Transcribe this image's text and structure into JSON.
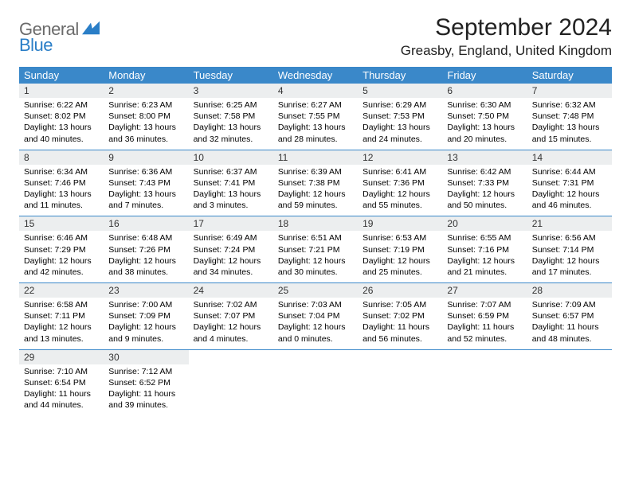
{
  "brand": {
    "general": "General",
    "blue": "Blue"
  },
  "title": "September 2024",
  "location": "Greasby, England, United Kingdom",
  "colors": {
    "header_bg": "#3a88c9",
    "daynum_bg": "#eceeef",
    "border": "#3a88c9"
  },
  "weekdays": [
    "Sunday",
    "Monday",
    "Tuesday",
    "Wednesday",
    "Thursday",
    "Friday",
    "Saturday"
  ],
  "weeks": [
    [
      {
        "n": "1",
        "sr": "Sunrise: 6:22 AM",
        "ss": "Sunset: 8:02 PM",
        "dl1": "Daylight: 13 hours",
        "dl2": "and 40 minutes."
      },
      {
        "n": "2",
        "sr": "Sunrise: 6:23 AM",
        "ss": "Sunset: 8:00 PM",
        "dl1": "Daylight: 13 hours",
        "dl2": "and 36 minutes."
      },
      {
        "n": "3",
        "sr": "Sunrise: 6:25 AM",
        "ss": "Sunset: 7:58 PM",
        "dl1": "Daylight: 13 hours",
        "dl2": "and 32 minutes."
      },
      {
        "n": "4",
        "sr": "Sunrise: 6:27 AM",
        "ss": "Sunset: 7:55 PM",
        "dl1": "Daylight: 13 hours",
        "dl2": "and 28 minutes."
      },
      {
        "n": "5",
        "sr": "Sunrise: 6:29 AM",
        "ss": "Sunset: 7:53 PM",
        "dl1": "Daylight: 13 hours",
        "dl2": "and 24 minutes."
      },
      {
        "n": "6",
        "sr": "Sunrise: 6:30 AM",
        "ss": "Sunset: 7:50 PM",
        "dl1": "Daylight: 13 hours",
        "dl2": "and 20 minutes."
      },
      {
        "n": "7",
        "sr": "Sunrise: 6:32 AM",
        "ss": "Sunset: 7:48 PM",
        "dl1": "Daylight: 13 hours",
        "dl2": "and 15 minutes."
      }
    ],
    [
      {
        "n": "8",
        "sr": "Sunrise: 6:34 AM",
        "ss": "Sunset: 7:46 PM",
        "dl1": "Daylight: 13 hours",
        "dl2": "and 11 minutes."
      },
      {
        "n": "9",
        "sr": "Sunrise: 6:36 AM",
        "ss": "Sunset: 7:43 PM",
        "dl1": "Daylight: 13 hours",
        "dl2": "and 7 minutes."
      },
      {
        "n": "10",
        "sr": "Sunrise: 6:37 AM",
        "ss": "Sunset: 7:41 PM",
        "dl1": "Daylight: 13 hours",
        "dl2": "and 3 minutes."
      },
      {
        "n": "11",
        "sr": "Sunrise: 6:39 AM",
        "ss": "Sunset: 7:38 PM",
        "dl1": "Daylight: 12 hours",
        "dl2": "and 59 minutes."
      },
      {
        "n": "12",
        "sr": "Sunrise: 6:41 AM",
        "ss": "Sunset: 7:36 PM",
        "dl1": "Daylight: 12 hours",
        "dl2": "and 55 minutes."
      },
      {
        "n": "13",
        "sr": "Sunrise: 6:42 AM",
        "ss": "Sunset: 7:33 PM",
        "dl1": "Daylight: 12 hours",
        "dl2": "and 50 minutes."
      },
      {
        "n": "14",
        "sr": "Sunrise: 6:44 AM",
        "ss": "Sunset: 7:31 PM",
        "dl1": "Daylight: 12 hours",
        "dl2": "and 46 minutes."
      }
    ],
    [
      {
        "n": "15",
        "sr": "Sunrise: 6:46 AM",
        "ss": "Sunset: 7:29 PM",
        "dl1": "Daylight: 12 hours",
        "dl2": "and 42 minutes."
      },
      {
        "n": "16",
        "sr": "Sunrise: 6:48 AM",
        "ss": "Sunset: 7:26 PM",
        "dl1": "Daylight: 12 hours",
        "dl2": "and 38 minutes."
      },
      {
        "n": "17",
        "sr": "Sunrise: 6:49 AM",
        "ss": "Sunset: 7:24 PM",
        "dl1": "Daylight: 12 hours",
        "dl2": "and 34 minutes."
      },
      {
        "n": "18",
        "sr": "Sunrise: 6:51 AM",
        "ss": "Sunset: 7:21 PM",
        "dl1": "Daylight: 12 hours",
        "dl2": "and 30 minutes."
      },
      {
        "n": "19",
        "sr": "Sunrise: 6:53 AM",
        "ss": "Sunset: 7:19 PM",
        "dl1": "Daylight: 12 hours",
        "dl2": "and 25 minutes."
      },
      {
        "n": "20",
        "sr": "Sunrise: 6:55 AM",
        "ss": "Sunset: 7:16 PM",
        "dl1": "Daylight: 12 hours",
        "dl2": "and 21 minutes."
      },
      {
        "n": "21",
        "sr": "Sunrise: 6:56 AM",
        "ss": "Sunset: 7:14 PM",
        "dl1": "Daylight: 12 hours",
        "dl2": "and 17 minutes."
      }
    ],
    [
      {
        "n": "22",
        "sr": "Sunrise: 6:58 AM",
        "ss": "Sunset: 7:11 PM",
        "dl1": "Daylight: 12 hours",
        "dl2": "and 13 minutes."
      },
      {
        "n": "23",
        "sr": "Sunrise: 7:00 AM",
        "ss": "Sunset: 7:09 PM",
        "dl1": "Daylight: 12 hours",
        "dl2": "and 9 minutes."
      },
      {
        "n": "24",
        "sr": "Sunrise: 7:02 AM",
        "ss": "Sunset: 7:07 PM",
        "dl1": "Daylight: 12 hours",
        "dl2": "and 4 minutes."
      },
      {
        "n": "25",
        "sr": "Sunrise: 7:03 AM",
        "ss": "Sunset: 7:04 PM",
        "dl1": "Daylight: 12 hours",
        "dl2": "and 0 minutes."
      },
      {
        "n": "26",
        "sr": "Sunrise: 7:05 AM",
        "ss": "Sunset: 7:02 PM",
        "dl1": "Daylight: 11 hours",
        "dl2": "and 56 minutes."
      },
      {
        "n": "27",
        "sr": "Sunrise: 7:07 AM",
        "ss": "Sunset: 6:59 PM",
        "dl1": "Daylight: 11 hours",
        "dl2": "and 52 minutes."
      },
      {
        "n": "28",
        "sr": "Sunrise: 7:09 AM",
        "ss": "Sunset: 6:57 PM",
        "dl1": "Daylight: 11 hours",
        "dl2": "and 48 minutes."
      }
    ],
    [
      {
        "n": "29",
        "sr": "Sunrise: 7:10 AM",
        "ss": "Sunset: 6:54 PM",
        "dl1": "Daylight: 11 hours",
        "dl2": "and 44 minutes."
      },
      {
        "n": "30",
        "sr": "Sunrise: 7:12 AM",
        "ss": "Sunset: 6:52 PM",
        "dl1": "Daylight: 11 hours",
        "dl2": "and 39 minutes."
      },
      null,
      null,
      null,
      null,
      null
    ]
  ]
}
